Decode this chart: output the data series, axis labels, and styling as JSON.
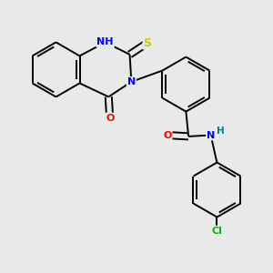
{
  "background_color": "#e8eaea",
  "bond_color": "#000000",
  "atom_colors": {
    "N": "#0000ff",
    "O": "#ff0000",
    "S": "#cccc00",
    "Cl": "#00bb00",
    "H": "#008080",
    "C": "#000000"
  },
  "figsize": [
    3.0,
    3.0
  ],
  "dpi": 100,
  "lw": 1.4,
  "font_size": 7.5
}
